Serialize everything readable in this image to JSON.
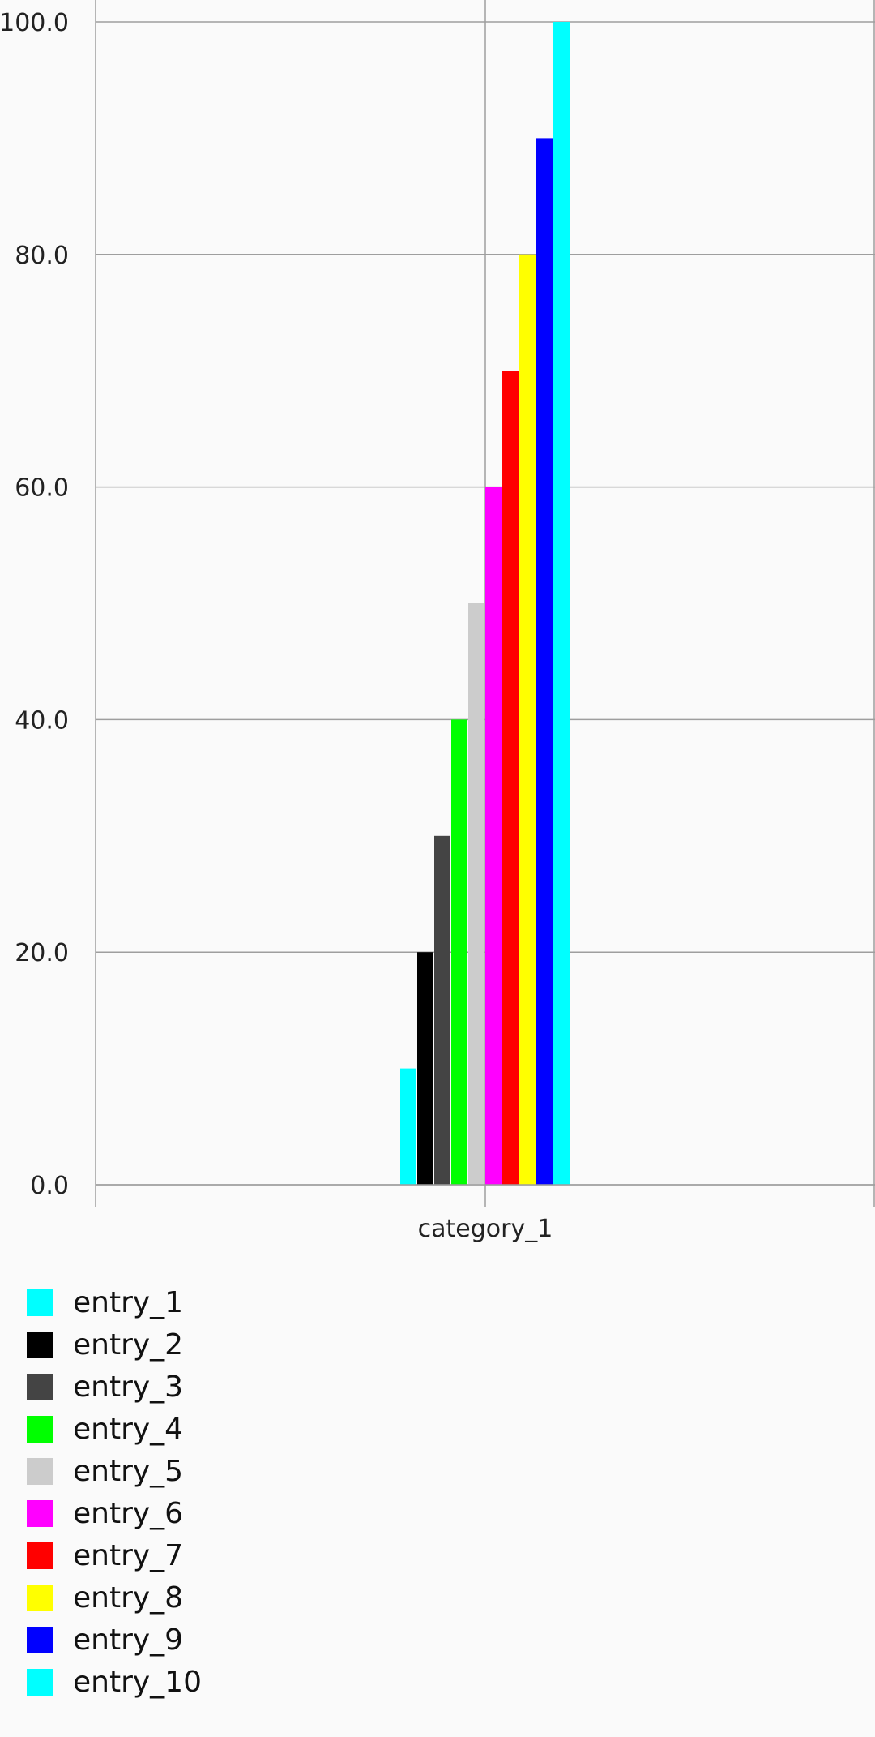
{
  "chart_data": {
    "type": "bar",
    "title": "",
    "xlabel": "",
    "ylabel": "",
    "categories": [
      "category_1"
    ],
    "ylim": [
      0,
      100
    ],
    "yticks": [
      "0.0",
      "20.0",
      "40.0",
      "60.0",
      "80.0",
      "100.0"
    ],
    "grid": true,
    "legend_position": "bottom-left",
    "series": [
      {
        "name": "entry_1",
        "color": "#00ffff",
        "values": [
          10
        ]
      },
      {
        "name": "entry_2",
        "color": "#000000",
        "values": [
          20
        ]
      },
      {
        "name": "entry_3",
        "color": "#444444",
        "values": [
          30
        ]
      },
      {
        "name": "entry_4",
        "color": "#00ff00",
        "values": [
          40
        ]
      },
      {
        "name": "entry_5",
        "color": "#cccccc",
        "values": [
          50
        ]
      },
      {
        "name": "entry_6",
        "color": "#ff00ff",
        "values": [
          60
        ]
      },
      {
        "name": "entry_7",
        "color": "#ff0000",
        "values": [
          70
        ]
      },
      {
        "name": "entry_8",
        "color": "#ffff00",
        "values": [
          80
        ]
      },
      {
        "name": "entry_9",
        "color": "#0000ff",
        "values": [
          90
        ]
      },
      {
        "name": "entry_10",
        "color": "#00ffff",
        "values": [
          100
        ]
      }
    ]
  }
}
